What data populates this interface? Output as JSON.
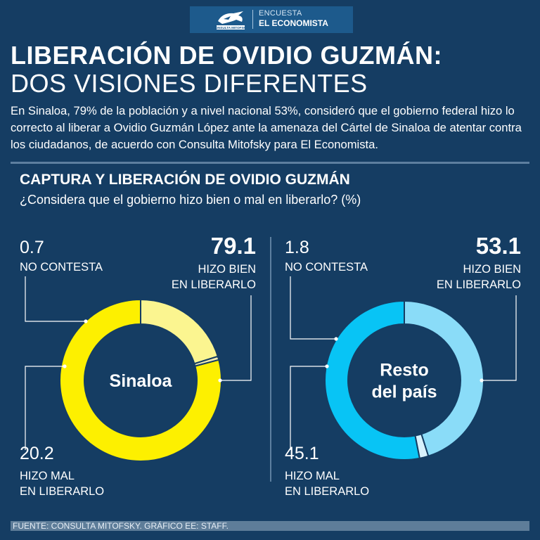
{
  "header": {
    "logo_icon": "consulta-mitofsky-logo",
    "section_label": "ENCUESTA",
    "brand": "EL ECONOMISTA"
  },
  "title": {
    "line1": "LIBERACIÓN DE OVIDIO GUZMÁN:",
    "line2": "DOS VISIONES DIFERENTES"
  },
  "intro": "En Sinaloa, 79% de la población y a nivel nacional 53%, consideró que el gobierno federal hizo lo correcto al liberar a Ovidio Guzmán López ante la amenaza del Cártel de Sinaloa de atentar contra los ciudadanos, de acuerdo con Consulta Mitofsky para El Economista.",
  "chart_data": [
    {
      "type": "pie",
      "title": "CAPTURA Y LIBERACIÓN DE OVIDIO GUZMÁN",
      "subtitle": "¿Considera que el gobierno hizo bien o mal en liberarlo? (%)",
      "center_label": "Sinaloa",
      "categories": [
        "HIZO BIEN EN LIBERARLO",
        "HIZO MAL EN LIBERARLO",
        "NO CONTESTA"
      ],
      "values": [
        79.1,
        20.2,
        0.7
      ],
      "value_labels": [
        "79.1",
        "20.2",
        "0.7"
      ],
      "colors": [
        "#fdf000",
        "#fbf590",
        "#f2ebb0"
      ]
    },
    {
      "type": "pie",
      "title": "CAPTURA Y LIBERACIÓN DE OVIDIO GUZMÁN",
      "subtitle": "¿Considera que el gobierno hizo bien o mal en liberarlo? (%)",
      "center_label_lines": [
        "Resto",
        "del país"
      ],
      "categories": [
        "HIZO BIEN EN LIBERARLO",
        "HIZO MAL EN LIBERARLO",
        "NO CONTESTA"
      ],
      "values": [
        53.1,
        45.1,
        1.8
      ],
      "value_labels": [
        "53.1",
        "45.1",
        "1.8"
      ],
      "colors": [
        "#08c4f5",
        "#8adcf8",
        "#d9f2fc"
      ]
    }
  ],
  "labels": {
    "bien_line1": "HIZO BIEN",
    "bien_line2": "EN LIBERARLO",
    "mal_line1": "HIZO MAL",
    "mal_line2": "EN LIBERARLO",
    "nc": "NO CONTESTA"
  },
  "footer": "FUENTE: CONSULTA MITOFSKY. GRÁFICO EE: STAFF."
}
